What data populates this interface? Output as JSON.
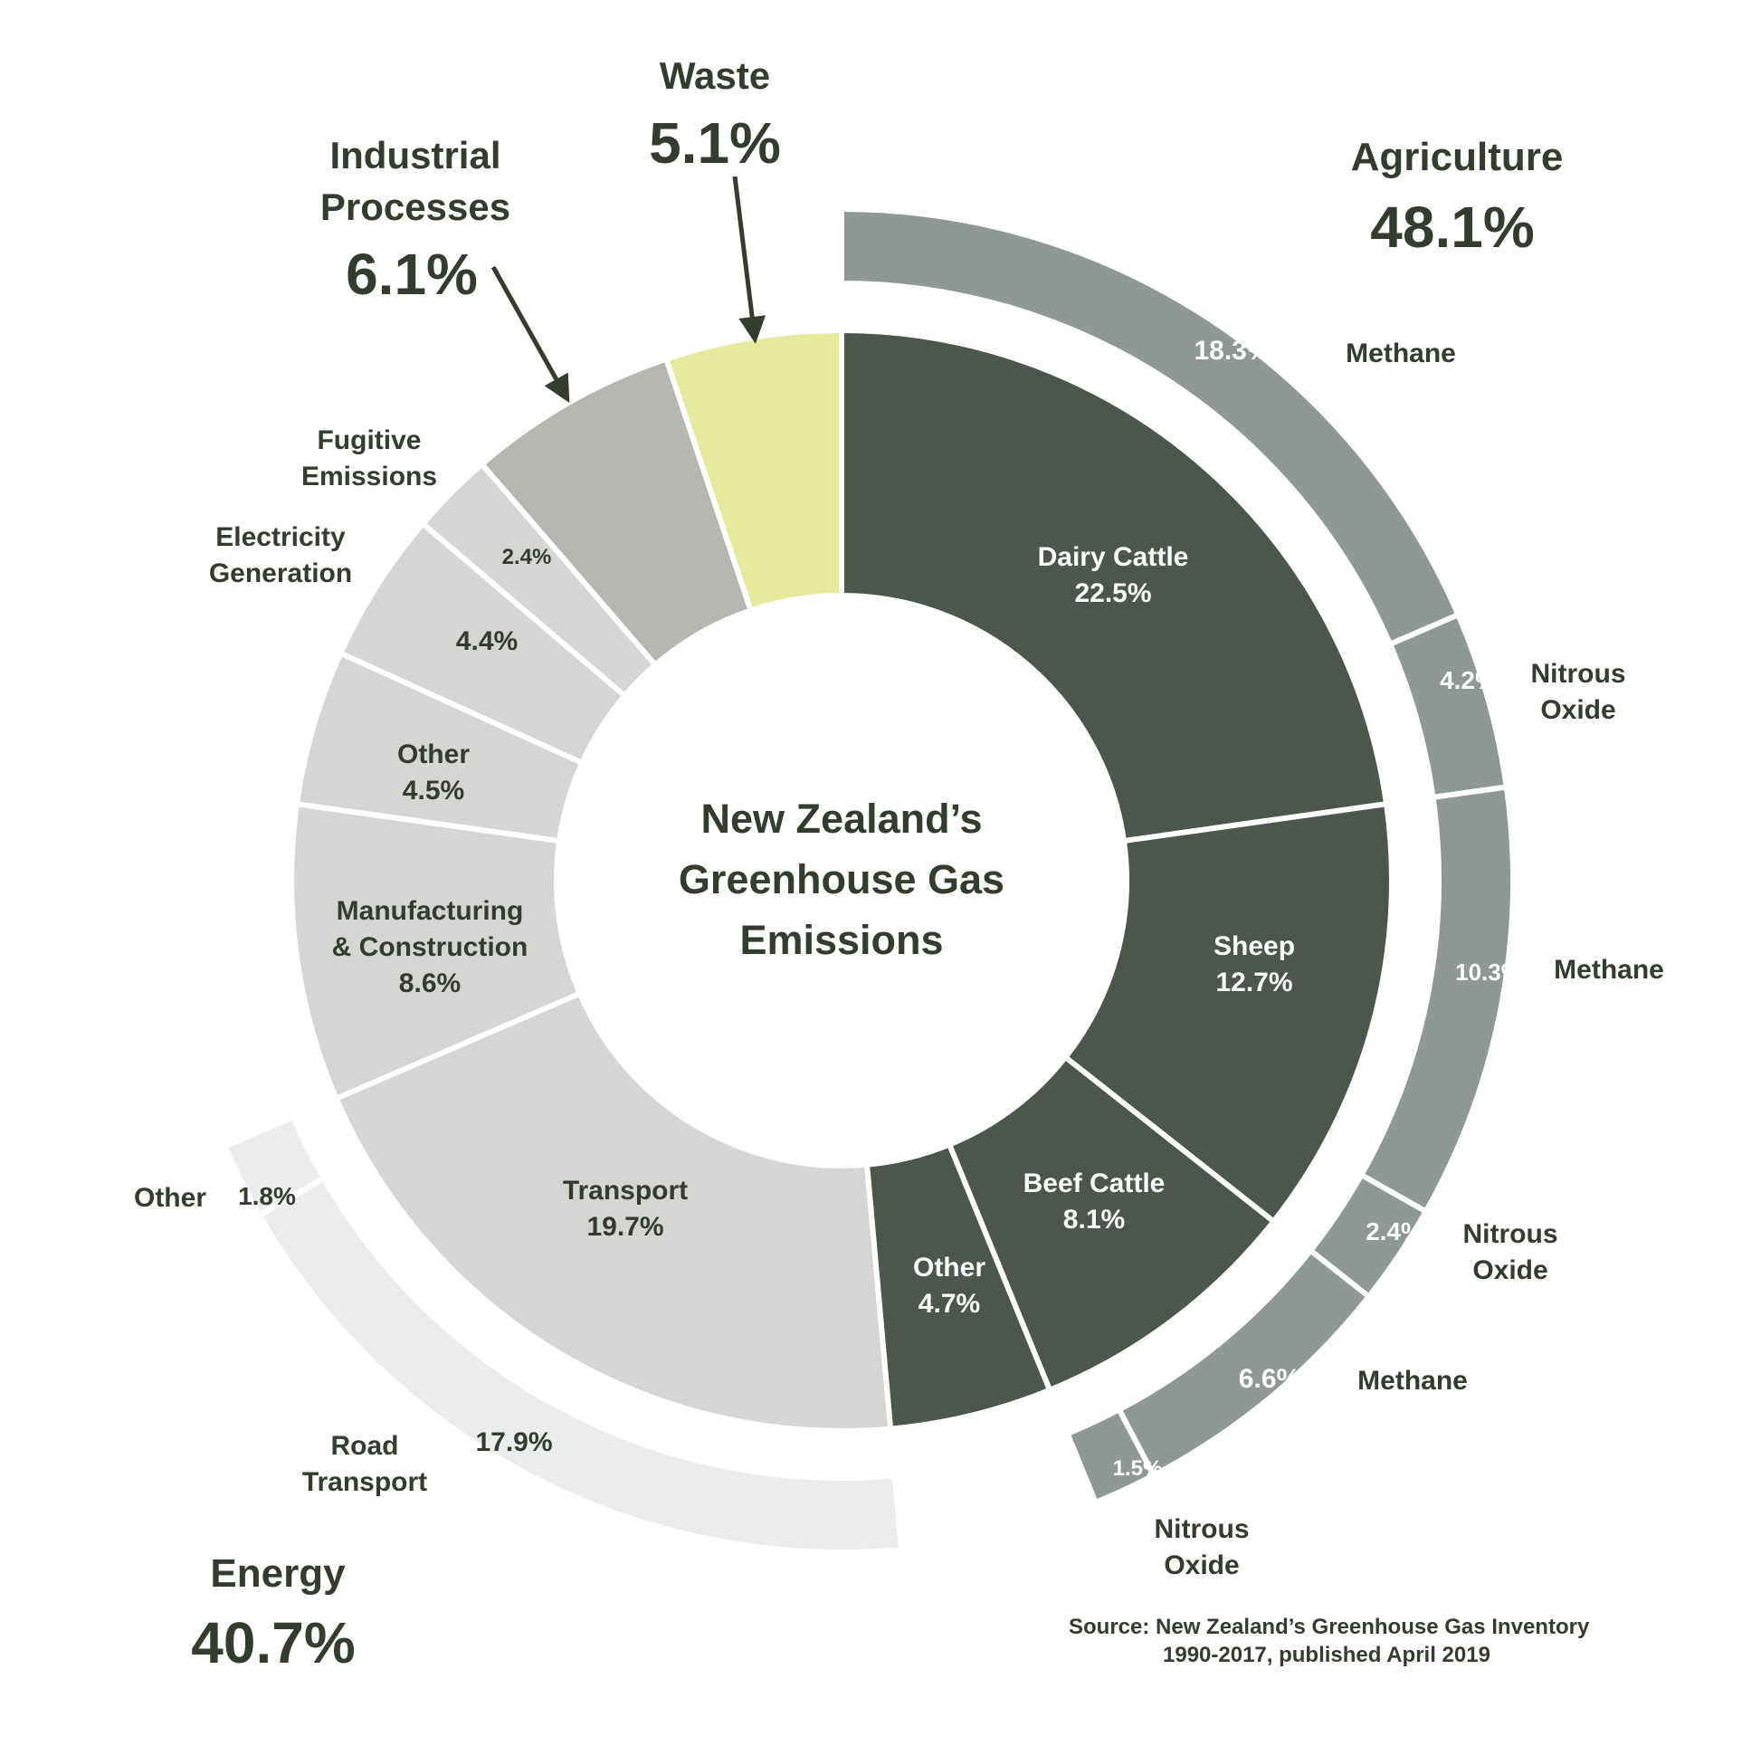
{
  "colors": {
    "agriculture": "#4d564d",
    "agriculture_gas": "#8f9797",
    "energy": "#d5d5d3",
    "energy_gas": "#ebeced",
    "industrial": "#b5b6b1",
    "waste": "#e5ea9d",
    "text_dark": "#343b2f",
    "text_light": "#ffffff",
    "divider": "#ffffff"
  },
  "chart_data": {
    "type": "pie",
    "variant": "sunburst",
    "title": "New Zealand's Greenhouse Gas Emissions",
    "sectors": [
      {
        "name": "Agriculture",
        "total_label": "48.1%",
        "value": 48.1
      },
      {
        "name": "Energy",
        "total_label": "40.7%",
        "value": 40.7
      },
      {
        "name": "Industrial Processes",
        "total_label": "6.1%",
        "value": 6.1
      },
      {
        "name": "Waste",
        "total_label": "5.1%",
        "value": 5.1
      }
    ],
    "inner_ring": [
      {
        "sector": "Agriculture",
        "name": "Dairy Cattle",
        "value": 22.5,
        "label": "22.5%"
      },
      {
        "sector": "Agriculture",
        "name": "Sheep",
        "value": 12.7,
        "label": "12.7%"
      },
      {
        "sector": "Agriculture",
        "name": "Beef Cattle",
        "value": 8.1,
        "label": "8.1%"
      },
      {
        "sector": "Agriculture",
        "name": "Other",
        "value": 4.7,
        "label": "4.7%"
      },
      {
        "sector": "Energy",
        "name": "Transport",
        "value": 19.7,
        "label": "19.7%"
      },
      {
        "sector": "Energy",
        "name": "Manufacturing & Construction",
        "value": 8.6,
        "label": "8.6%"
      },
      {
        "sector": "Energy",
        "name": "Other",
        "value": 4.5,
        "label": "4.5%"
      },
      {
        "sector": "Energy",
        "name": "Electricity Generation",
        "value": 4.4,
        "label": "4.4%"
      },
      {
        "sector": "Energy",
        "name": "Fugitive Emissions",
        "value": 2.4,
        "label": "2.4%"
      },
      {
        "sector": "Industrial Processes",
        "name": "Industrial Processes",
        "value": 6.1,
        "label": "6.1%"
      },
      {
        "sector": "Waste",
        "name": "Waste",
        "value": 5.1,
        "label": "5.1%"
      }
    ],
    "outer_ring": [
      {
        "sector": "Agriculture",
        "parent": "Dairy Cattle",
        "name": "Methane",
        "value": 18.3,
        "label": "18.3%"
      },
      {
        "sector": "Agriculture",
        "parent": "Dairy Cattle",
        "name": "Nitrous Oxide",
        "value": 4.2,
        "label": "4.2%"
      },
      {
        "sector": "Agriculture",
        "parent": "Sheep",
        "name": "Methane",
        "value": 10.3,
        "label": "10.3%"
      },
      {
        "sector": "Agriculture",
        "parent": "Sheep",
        "name": "Nitrous Oxide",
        "value": 2.4,
        "label": "2.4%"
      },
      {
        "sector": "Agriculture",
        "parent": "Beef Cattle",
        "name": "Methane",
        "value": 6.6,
        "label": "6.6%"
      },
      {
        "sector": "Agriculture",
        "parent": "Beef Cattle",
        "name": "Nitrous Oxide",
        "value": 1.5,
        "label": "1.5%"
      },
      {
        "sector": "Energy",
        "parent": "Transport",
        "name": "Road Transport",
        "value": 17.9,
        "label": "17.9%"
      },
      {
        "sector": "Energy",
        "parent": "Transport",
        "name": "Other",
        "value": 1.8,
        "label": "1.8%"
      }
    ]
  },
  "text": {
    "title_lines": [
      "New Zealand’s",
      "Greenhouse Gas",
      "Emissions"
    ],
    "sector_names": {
      "agriculture": "Agriculture",
      "energy": "Energy",
      "industrial_lines": [
        "Industrial",
        "Processes"
      ],
      "waste": "Waste"
    },
    "sector_values": {
      "agriculture": "48.1%",
      "energy": "40.7%",
      "industrial": "6.1%",
      "waste": "5.1%"
    },
    "inner_labels": {
      "dairy_name": "Dairy Cattle",
      "dairy_value": "22.5%",
      "sheep_name": "Sheep",
      "sheep_value": "12.7%",
      "beef_name": "Beef Cattle",
      "beef_value": "8.1%",
      "agri_other_name": "Other",
      "agri_other_value": "4.7%",
      "transport_name": "Transport",
      "transport_value": "19.7%",
      "manufacturing_line1": "Manufacturing",
      "manufacturing_line2": "& Construction",
      "manufacturing_value": "8.6%",
      "energy_other_name": "Other",
      "energy_other_value": "4.5%",
      "electricity_line1": "Electricity",
      "electricity_line2": "Generation",
      "electricity_value": "4.4%",
      "fugitive_line1": "Fugitive",
      "fugitive_line2": "Emissions",
      "fugitive_value": "2.4%"
    },
    "outer_labels": {
      "methane": "Methane",
      "nitrous_line1": "Nitrous",
      "nitrous_line2": "Oxide",
      "road_line1": "Road",
      "road_line2": "Transport",
      "other": "Other",
      "dairy_methane_value": "18.3%",
      "dairy_nitrous_value": "4.2%",
      "sheep_methane_value": "10.3%",
      "sheep_nitrous_value": "2.4%",
      "beef_methane_value": "6.6%",
      "beef_nitrous_value": "1.5%",
      "road_value": "17.9%",
      "transport_other_value": "1.8%"
    },
    "source_line1": "Source:  New Zealand’s Greenhouse Gas Inventory",
    "source_line2": "1990-2017, published April 2019"
  }
}
